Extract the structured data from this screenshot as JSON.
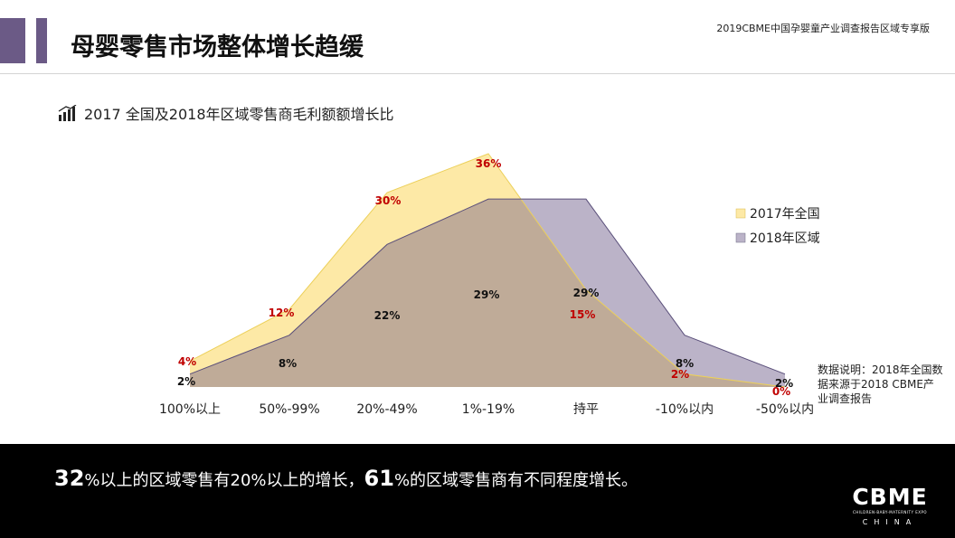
{
  "header": {
    "title": "母婴零售市场整体增长趋缓",
    "report_label": "2019CBME中国孕婴童产业调查报告区域专享版"
  },
  "subtitle": "2017 全国及2018年区域零售商毛利额额增长比",
  "chart_data": {
    "type": "area",
    "title": "2017 全国及2018年区域零售商毛利额额增长比",
    "categories": [
      "100%以上",
      "50%-99%",
      "20%-49%",
      "1%-19%",
      "持平",
      "-10%以内",
      "-50%以内"
    ],
    "ylim": [
      0,
      36
    ],
    "series": [
      {
        "name": "2017年全国",
        "values": [
          4,
          12,
          30,
          36,
          15,
          2,
          0
        ],
        "labels": [
          "4%",
          "12%",
          "30%",
          "36%",
          "15%",
          "2%",
          "0%"
        ],
        "fill": "#fde9a6",
        "stroke": "#ecd05a",
        "label_color": "#c00000"
      },
      {
        "name": "2018年区域",
        "values": [
          2,
          8,
          22,
          29,
          29,
          8,
          2
        ],
        "labels": [
          "2%",
          "8%",
          "22%",
          "29%",
          "29%",
          "8%",
          "2%"
        ],
        "fill": "#bbb3c8",
        "stroke": "#5a4f7a",
        "label_color": "#111111"
      }
    ],
    "legend": [
      {
        "name": "2017年全国",
        "color": "#fde9a6"
      },
      {
        "name": "2018年区域",
        "color": "#bbb3c8"
      }
    ],
    "overlap_color": "#bfab98",
    "legend_position": "right"
  },
  "note": "数据说明：2018年全国数据来源于2018 CBME产业调查报告",
  "footer": {
    "summary_pct1": "32",
    "summary_part1": "%以上的区域零售有20%以上的增长，",
    "summary_pct2": "61",
    "summary_part2": "%的区域零售商有不同程度增长。"
  },
  "logo": {
    "main": "CBME",
    "sub": "CHILDREN-BABY-MATERNITY EXPO",
    "country": "CHINA"
  }
}
